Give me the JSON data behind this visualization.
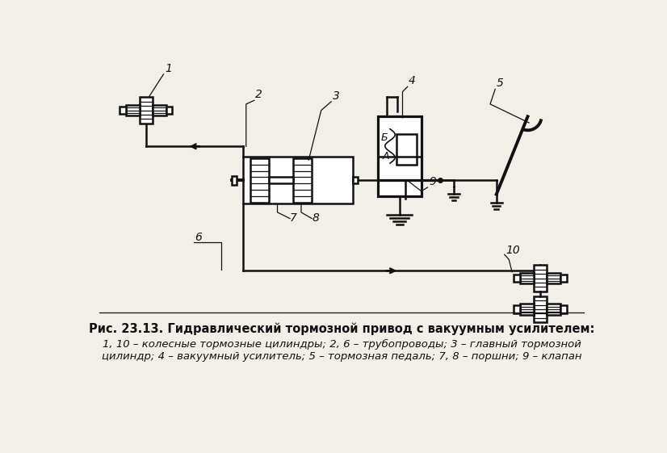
{
  "title": "Рис. 23.13. Гидравлический тормозной привод с вакуумным усилителем:",
  "caption_line2": "1, 10 – колесные тормозные цилиндры; 2, 6 – трубопроводы; 3 – главный тормозной",
  "caption_line3": "цилиндр; 4 – вакуумный усилитель; 5 – тормозная педаль; 7, 8 – поршни; 9 – клапан",
  "bg_color": "#f2efe9",
  "line_color": "#111111",
  "label_A": "А",
  "label_B": "Б"
}
